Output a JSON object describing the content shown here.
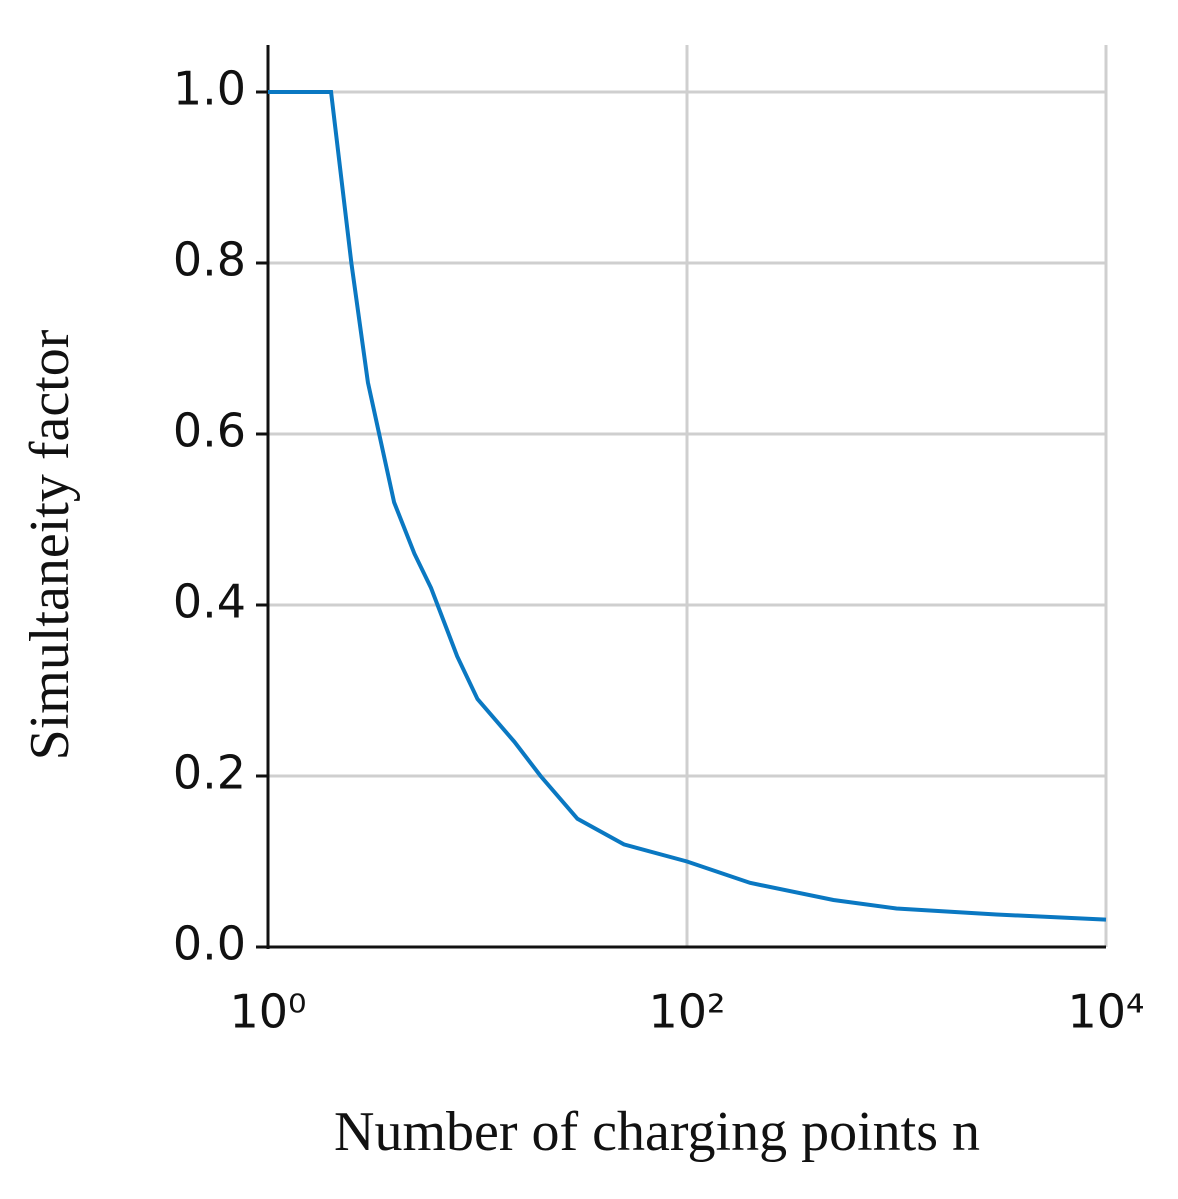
{
  "chart_data": {
    "type": "line",
    "x_label": "Number of charging points n",
    "y_label": "Simultaneity factor",
    "x_scale": "log",
    "grid": true,
    "x": [
      1,
      2,
      2.5,
      3,
      4,
      5,
      6,
      8,
      10,
      15,
      20,
      30,
      50,
      100,
      200,
      500,
      1000,
      3000,
      10000
    ],
    "series": [
      {
        "color": "#0a78c2",
        "values": [
          1.0,
          1.0,
          0.8,
          0.66,
          0.52,
          0.46,
          0.42,
          0.34,
          0.29,
          0.24,
          0.2,
          0.15,
          0.12,
          0.1,
          0.075,
          0.055,
          0.045,
          0.038,
          0.032
        ]
      }
    ],
    "xlim": [
      1,
      10000
    ],
    "xticks": [
      {
        "value": 1,
        "label": "10⁰"
      },
      {
        "value": 100,
        "label": "10²"
      },
      {
        "value": 10000,
        "label": "10⁴"
      }
    ],
    "ylim": [
      0,
      1
    ],
    "yticks": [
      {
        "value": 0,
        "label": "0.0"
      },
      0.2,
      0.4,
      0.6,
      0.8,
      {
        "value": 1,
        "label": "1.0"
      }
    ]
  }
}
